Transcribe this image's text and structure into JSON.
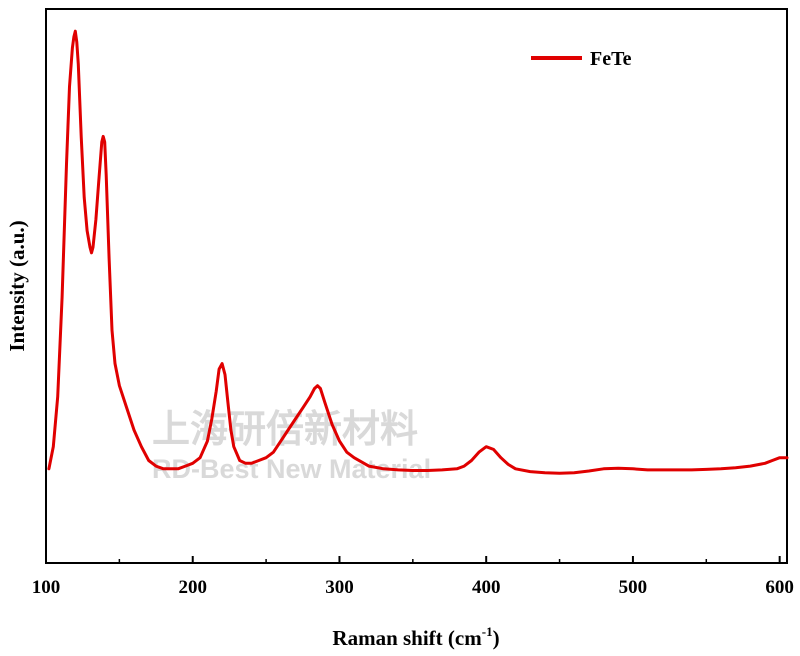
{
  "chart_data": {
    "type": "line",
    "xlabel": "Raman shift (cm",
    "xlabel_sup": "-1",
    "xlabel_close": ")",
    "ylabel": "Intensity (a.u.)",
    "xlim": [
      100,
      605
    ],
    "ylim": [
      0,
      100
    ],
    "xticks": [
      100,
      200,
      300,
      400,
      500,
      600
    ],
    "grid": false,
    "legend_position": "top-right",
    "series": [
      {
        "name": "FeTe",
        "color": "#e00000",
        "x": [
          102,
          105,
          108,
          111,
          114,
          116,
          118,
          119,
          120,
          121,
          122,
          124,
          126,
          128,
          130,
          131,
          132,
          134,
          136,
          138,
          139,
          140,
          141,
          143,
          145,
          147,
          150,
          155,
          160,
          165,
          170,
          175,
          180,
          185,
          190,
          195,
          200,
          205,
          210,
          213,
          216,
          218,
          220,
          222,
          224,
          226,
          228,
          232,
          236,
          240,
          245,
          250,
          255,
          260,
          265,
          270,
          275,
          280,
          283,
          285,
          287,
          290,
          295,
          300,
          305,
          310,
          320,
          330,
          340,
          350,
          360,
          370,
          380,
          385,
          390,
          395,
          400,
          405,
          410,
          415,
          420,
          430,
          440,
          450,
          460,
          470,
          480,
          490,
          500,
          510,
          520,
          530,
          540,
          550,
          560,
          570,
          580,
          590,
          595,
          600,
          605
        ],
        "y": [
          17,
          21,
          30,
          48,
          72,
          86,
          93,
          95,
          96,
          94,
          90,
          77,
          66,
          60,
          57,
          56,
          57,
          62,
          69,
          76,
          77,
          76,
          70,
          55,
          42,
          36,
          32,
          28,
          24,
          21,
          18.5,
          17.5,
          17,
          17,
          17,
          17.5,
          18,
          19,
          22,
          26,
          31,
          35,
          36,
          34,
          29,
          24,
          21,
          18.5,
          18,
          18,
          18.5,
          19,
          20,
          22,
          24,
          26,
          28,
          30,
          31.5,
          32,
          31.5,
          29,
          25,
          22,
          20,
          19,
          17.5,
          17,
          16.8,
          16.7,
          16.7,
          16.8,
          17,
          17.5,
          18.5,
          20,
          21,
          20.5,
          19,
          17.8,
          17,
          16.5,
          16.3,
          16.2,
          16.3,
          16.6,
          17,
          17.1,
          17,
          16.8,
          16.8,
          16.8,
          16.8,
          16.9,
          17,
          17.2,
          17.5,
          18,
          18.5,
          19,
          19
        ]
      }
    ]
  },
  "watermark": {
    "line1": "上海研倍新材料",
    "line2": "RD-Best New Material"
  }
}
